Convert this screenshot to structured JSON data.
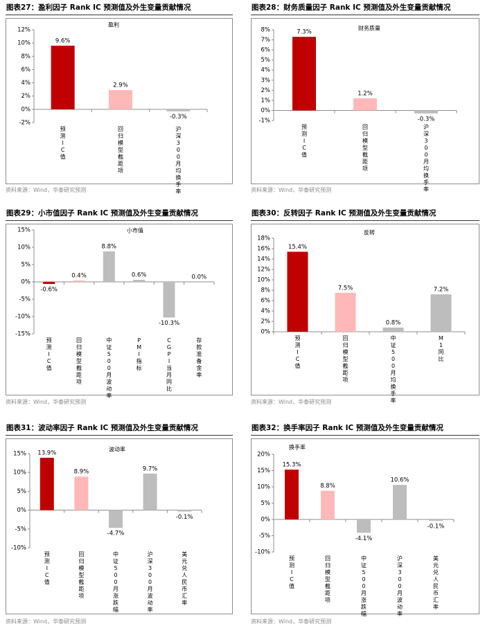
{
  "colors": {
    "pred": "#c00000",
    "decay": "#ffb8b8",
    "other": "#bdbdbd"
  },
  "source_text": "资料来源：Wind，华泰研究预测",
  "charts": [
    {
      "figure_label": "图表27：",
      "title": "盈利因子 Rank IC 预测值及外生变量贡献情况",
      "source": "资料来源：Wind，华泰研究预测",
      "chart_data": {
        "type": "bar",
        "title": "盈利",
        "categories": [
          "预测IC值",
          "回归模型截距项",
          "沪深300月均换手率"
        ],
        "values": [
          9.6,
          2.9,
          -0.3
        ],
        "value_labels": [
          "9.6%",
          "2.9%",
          "-0.3%"
        ],
        "ylim": [
          -2,
          12
        ],
        "ystep": 2,
        "yticks": [
          "-2%",
          "0%",
          "2%",
          "4%",
          "6%",
          "8%",
          "10%",
          "12%"
        ]
      }
    },
    {
      "figure_label": "图表28：",
      "title": "财务质量因子 Rank IC 预测值及外生变量贡献情况",
      "source": "资料来源：Wind，华泰研究预测",
      "chart_data": {
        "type": "bar",
        "title": "财务质量",
        "categories": [
          "预测IC值",
          "回归模型截距项",
          "沪深300月均换手率"
        ],
        "values": [
          7.3,
          1.2,
          -0.3
        ],
        "value_labels": [
          "7.3%",
          "1.2%",
          "-0.3%"
        ],
        "ylim": [
          -1,
          8
        ],
        "ystep": 1,
        "yticks": [
          "-1%",
          "0%",
          "1%",
          "2%",
          "3%",
          "4%",
          "5%",
          "6%",
          "7%",
          "8%"
        ]
      }
    },
    {
      "figure_label": "图表29：",
      "title": "小市值因子 Rank IC 预测值及外生变量贡献情况",
      "source": "资料来源：Wind，华泰研究预测",
      "chart_data": {
        "type": "bar",
        "title": "小市值",
        "categories": [
          "预测IC值",
          "回归模型截距项",
          "中证500月波动率",
          "PMI指标",
          "CGPI当月同比",
          "存款准备金率"
        ],
        "values": [
          -0.6,
          0.4,
          8.8,
          0.6,
          -10.3,
          0.0
        ],
        "value_labels": [
          "-0.6%",
          "0.4%",
          "8.8%",
          "0.6%",
          "-10.3%",
          "0.0%"
        ],
        "ylim": [
          -15,
          15
        ],
        "ystep": 5,
        "yticks": [
          "-15%",
          "-10%",
          "-5%",
          "0%",
          "5%",
          "10%",
          "15%"
        ]
      }
    },
    {
      "figure_label": "图表30：",
      "title": "反转因子 Rank IC 预测值及外生变量贡献情况",
      "source": "资料来源：Wind，华泰研究预测",
      "chart_data": {
        "type": "bar",
        "title": "反转",
        "categories": [
          "预测IC值",
          "回归模型截距项",
          "中证500月均换手率",
          "M1同比"
        ],
        "values": [
          15.4,
          7.5,
          0.8,
          7.2
        ],
        "value_labels": [
          "15.4%",
          "7.5%",
          "0.8%",
          "7.2%"
        ],
        "ylim": [
          0,
          18
        ],
        "ystep": 2,
        "yticks": [
          "0%",
          "2%",
          "4%",
          "6%",
          "8%",
          "10%",
          "12%",
          "14%",
          "16%",
          "18%"
        ]
      }
    },
    {
      "figure_label": "图表31：",
      "title": "波动率因子 Rank IC 预测值及外生变量贡献情况",
      "source": "资料来源：Wind，华泰研究预测",
      "chart_data": {
        "type": "bar",
        "title": "波动率",
        "categories": [
          "预测IC值",
          "回归模型截距项",
          "中证500月涨跌幅",
          "沪深300月波动率",
          "美元兑人民币汇率"
        ],
        "values": [
          13.9,
          8.9,
          -4.7,
          9.7,
          -0.1
        ],
        "value_labels": [
          "13.9%",
          "8.9%",
          "-4.7%",
          "9.7%",
          "-0.1%"
        ],
        "ylim": [
          -10,
          15
        ],
        "ystep": 5,
        "yticks": [
          "-10%",
          "-5%",
          "0%",
          "5%",
          "10%",
          "15%"
        ]
      }
    },
    {
      "figure_label": "图表32：",
      "title": "换手率因子 Rank IC 预测值及外生变量贡献情况",
      "source": "资料来源：Wind，华泰研究预测",
      "chart_data": {
        "type": "bar",
        "title": "换手率",
        "categories": [
          "预测IC值",
          "回归模型截距项",
          "中证500月涨跌幅",
          "沪深300月波动率",
          "美元兑人民币汇率"
        ],
        "values": [
          15.3,
          8.8,
          -4.1,
          10.6,
          -0.1
        ],
        "value_labels": [
          "15.3%",
          "8.8%",
          "-4.1%",
          "10.6%",
          "-0.1%"
        ],
        "ylim": [
          -10,
          20
        ],
        "ystep": 5,
        "yticks": [
          "-10%",
          "-5%",
          "0%",
          "5%",
          "10%",
          "15%",
          "20%"
        ]
      }
    }
  ]
}
